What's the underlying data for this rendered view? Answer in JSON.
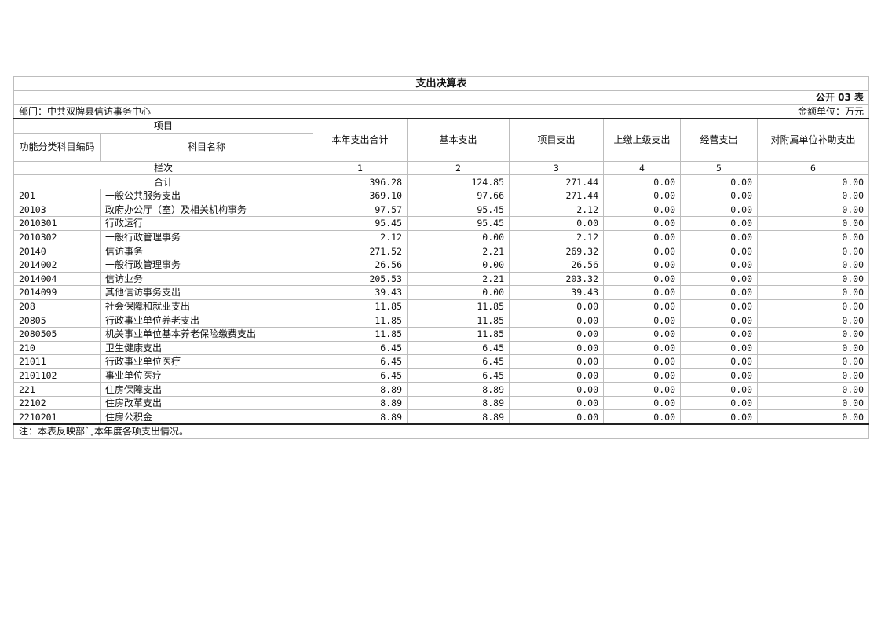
{
  "title": "支出决算表",
  "form_no": "公开 03 表",
  "department": "部门：中共双牌县信访事务中心",
  "unit": "金额单位：万元",
  "header": {
    "item": "项目",
    "code": "功能分类科目编码",
    "name": "科目名称",
    "columns": [
      "本年支出合计",
      "基本支出",
      "项目支出",
      "上缴上级支出",
      "经营支出",
      "对附属单位补助支出"
    ]
  },
  "column_index_label": "栏次",
  "column_index": [
    "1",
    "2",
    "3",
    "4",
    "5",
    "6"
  ],
  "total": {
    "label": "合计",
    "values": [
      "396.28",
      "124.85",
      "271.44",
      "0.00",
      "0.00",
      "0.00"
    ]
  },
  "rows": [
    {
      "code": "201",
      "name": "一般公共服务支出",
      "values": [
        "369.10",
        "97.66",
        "271.44",
        "0.00",
        "0.00",
        "0.00"
      ]
    },
    {
      "code": "20103",
      "name": "政府办公厅（室）及相关机构事务",
      "values": [
        "97.57",
        "95.45",
        "2.12",
        "0.00",
        "0.00",
        "0.00"
      ]
    },
    {
      "code": "2010301",
      "name": "行政运行",
      "values": [
        "95.45",
        "95.45",
        "0.00",
        "0.00",
        "0.00",
        "0.00"
      ]
    },
    {
      "code": "2010302",
      "name": "一般行政管理事务",
      "values": [
        "2.12",
        "0.00",
        "2.12",
        "0.00",
        "0.00",
        "0.00"
      ]
    },
    {
      "code": "20140",
      "name": "信访事务",
      "values": [
        "271.52",
        "2.21",
        "269.32",
        "0.00",
        "0.00",
        "0.00"
      ]
    },
    {
      "code": "2014002",
      "name": "一般行政管理事务",
      "values": [
        "26.56",
        "0.00",
        "26.56",
        "0.00",
        "0.00",
        "0.00"
      ]
    },
    {
      "code": "2014004",
      "name": "信访业务",
      "values": [
        "205.53",
        "2.21",
        "203.32",
        "0.00",
        "0.00",
        "0.00"
      ]
    },
    {
      "code": "2014099",
      "name": "其他信访事务支出",
      "values": [
        "39.43",
        "0.00",
        "39.43",
        "0.00",
        "0.00",
        "0.00"
      ]
    },
    {
      "code": "208",
      "name": "社会保障和就业支出",
      "values": [
        "11.85",
        "11.85",
        "0.00",
        "0.00",
        "0.00",
        "0.00"
      ]
    },
    {
      "code": "20805",
      "name": "行政事业单位养老支出",
      "values": [
        "11.85",
        "11.85",
        "0.00",
        "0.00",
        "0.00",
        "0.00"
      ]
    },
    {
      "code": "2080505",
      "name": "机关事业单位基本养老保险缴费支出",
      "values": [
        "11.85",
        "11.85",
        "0.00",
        "0.00",
        "0.00",
        "0.00"
      ]
    },
    {
      "code": "210",
      "name": "卫生健康支出",
      "values": [
        "6.45",
        "6.45",
        "0.00",
        "0.00",
        "0.00",
        "0.00"
      ]
    },
    {
      "code": "21011",
      "name": "行政事业单位医疗",
      "values": [
        "6.45",
        "6.45",
        "0.00",
        "0.00",
        "0.00",
        "0.00"
      ]
    },
    {
      "code": "2101102",
      "name": "事业单位医疗",
      "values": [
        "6.45",
        "6.45",
        "0.00",
        "0.00",
        "0.00",
        "0.00"
      ]
    },
    {
      "code": "221",
      "name": "住房保障支出",
      "values": [
        "8.89",
        "8.89",
        "0.00",
        "0.00",
        "0.00",
        "0.00"
      ]
    },
    {
      "code": "22102",
      "name": "住房改革支出",
      "values": [
        "8.89",
        "8.89",
        "0.00",
        "0.00",
        "0.00",
        "0.00"
      ]
    },
    {
      "code": "2210201",
      "name": "住房公积金",
      "values": [
        "8.89",
        "8.89",
        "0.00",
        "0.00",
        "0.00",
        "0.00"
      ]
    }
  ],
  "note": "注：本表反映部门本年度各项支出情况。"
}
